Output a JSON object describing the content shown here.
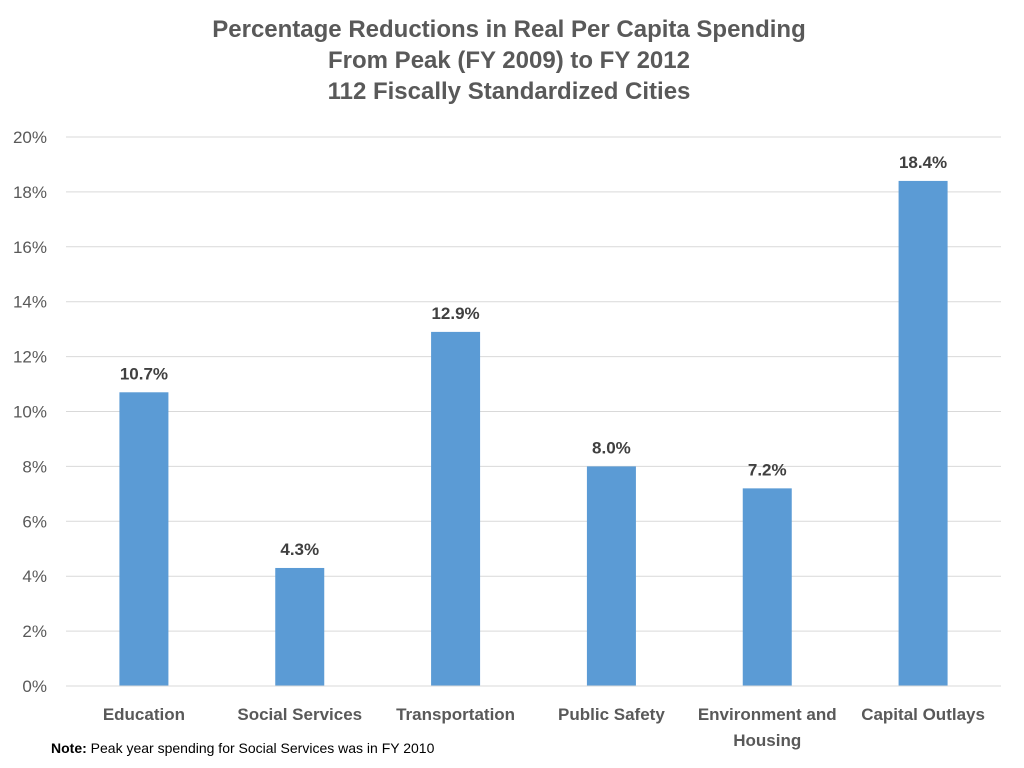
{
  "chart_data": {
    "type": "bar",
    "title_lines": [
      "Percentage Reductions in Real Per Capita Spending",
      "From Peak  (FY 2009) to FY 2012",
      "112 Fiscally Standardized Cities"
    ],
    "categories": [
      [
        "Education"
      ],
      [
        "Social Services"
      ],
      [
        "Transportation"
      ],
      [
        "Public Safety"
      ],
      [
        "Environment and",
        "Housing"
      ],
      [
        "Capital Outlays"
      ]
    ],
    "values": [
      10.7,
      4.3,
      12.9,
      8.0,
      7.2,
      18.4
    ],
    "data_labels": [
      "10.7%",
      "4.3%",
      "12.9%",
      "8.0%",
      "7.2%",
      "18.4%"
    ],
    "yticks": [
      "0%",
      "2%",
      "4%",
      "6%",
      "8%",
      "10%",
      "12%",
      "14%",
      "16%",
      "18%",
      "20%"
    ],
    "ylim": [
      0,
      20
    ],
    "xlabel": "",
    "ylabel": "",
    "grid": true,
    "legend": "none",
    "bar_color": "#5B9BD5",
    "grid_color": "#D9D9D9",
    "text_color": "#595959"
  },
  "note": {
    "label": "Note:",
    "text": " Peak year spending for Social Services was in FY 2010"
  }
}
